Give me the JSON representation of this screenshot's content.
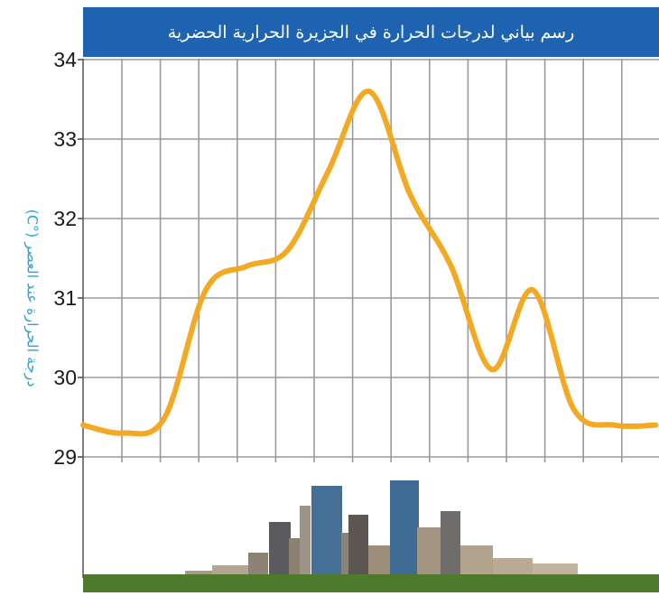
{
  "chart_data": {
    "type": "line",
    "title": "رسم بياني لدرجات الحرارة في الجزيرة الحرارية الحضرية",
    "xlabel": "",
    "ylabel": "درجة الحرارة عند العصر (°C)",
    "ylim": [
      29,
      34
    ],
    "yticks": [
      29,
      30,
      31,
      32,
      33,
      34
    ],
    "grid": true,
    "x": [
      0,
      1,
      2,
      3,
      4,
      5,
      6,
      7,
      8,
      9,
      10,
      11,
      12,
      13,
      14
    ],
    "series": [
      {
        "values": [
          29.4,
          29.3,
          29.5,
          31.1,
          31.4,
          31.6,
          32.6,
          33.6,
          32.3,
          31.4,
          30.1,
          31.1,
          29.6,
          29.4,
          29.4
        ]
      }
    ]
  },
  "colors": {
    "title_bar": "#1e63b0",
    "line": "#f4a922",
    "grid": "#9a9a9a",
    "axis_label": "#29a7d6",
    "ground": "#4e7a2c"
  },
  "decoration": {
    "skyline": "city-skyline-illustration"
  }
}
